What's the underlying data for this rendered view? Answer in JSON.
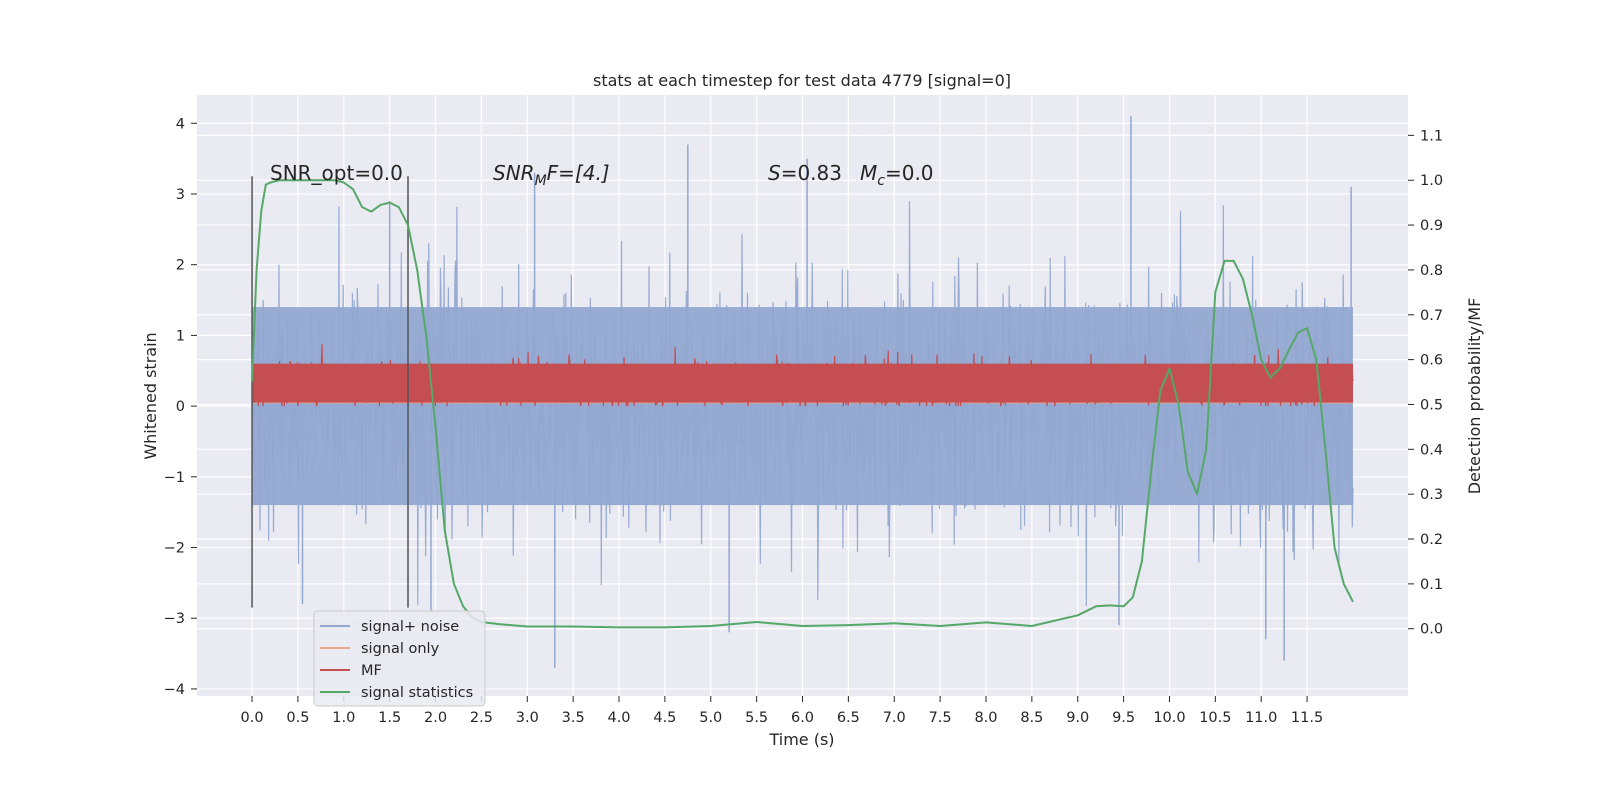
{
  "chart_data": {
    "type": "line",
    "title": "stats at each timestep for test data 4779 [signal=0]",
    "xlabel": "Time (s)",
    "ylabel": "Whitened strain",
    "y2label": "Detection probability/MF",
    "xlim": [
      -0.6,
      12.6
    ],
    "ylim": [
      -4.1,
      4.4
    ],
    "y2lim": [
      -0.15,
      1.19
    ],
    "x_ticks": [
      0.0,
      0.5,
      1.0,
      1.5,
      2.0,
      2.5,
      3.0,
      3.5,
      4.0,
      4.5,
      5.0,
      5.5,
      6.0,
      6.5,
      7.0,
      7.5,
      8.0,
      8.5,
      9.0,
      9.5,
      10.0,
      10.5,
      11.0,
      11.5
    ],
    "x_tick_labels": [
      "0.0",
      "0.5",
      "1.0",
      "1.5",
      "2.0",
      "2.5",
      "3.0",
      "3.5",
      "4.0",
      "4.5",
      "5.0",
      "5.5",
      "6.0",
      "6.5",
      "7.0",
      "7.5",
      "8.0",
      "8.5",
      "9.0",
      "9.5",
      "10.0",
      "10.5",
      "11.0",
      "11.5"
    ],
    "y_ticks": [
      4,
      3,
      2,
      1,
      0,
      -1,
      -2,
      -3,
      -4
    ],
    "y_tick_labels": [
      "4",
      "3",
      "2",
      "1",
      "0",
      "−1",
      "−2",
      "−3",
      "−4"
    ],
    "y2_ticks": [
      1.1,
      1.0,
      0.9,
      0.8,
      0.7,
      0.6,
      0.5,
      0.4,
      0.3,
      0.2,
      0.1,
      0.0
    ],
    "y2_tick_labels": [
      "1.1",
      "1.0",
      "0.9",
      "0.8",
      "0.7",
      "0.6",
      "0.5",
      "0.4",
      "0.3",
      "0.2",
      "0.1",
      "0.0"
    ],
    "grid": true,
    "legend_position": "lower-left",
    "vertical_markers": [
      0.0,
      1.7
    ],
    "annotations": {
      "snr_opt": "SNR_opt=0.0",
      "snr_mf_base": "SNR",
      "snr_mf_sub": "M",
      "snr_mf_rest": "F=[4.]",
      "s_label": "S",
      "s_value": "=0.83",
      "mc_base": "M",
      "mc_sub": "c",
      "mc_value": "=0.0"
    },
    "series": [
      {
        "name": "signal+ noise",
        "color": "#92a8d1",
        "axis": "left",
        "t_range": [
          0.0,
          12.0
        ],
        "envelope_typical": [
          -1.4,
          1.4
        ],
        "peaks": [
          {
            "x": 0.55,
            "y": -2.8
          },
          {
            "x": 1.5,
            "y": 2.9
          },
          {
            "x": 1.95,
            "y": -2.9
          },
          {
            "x": 3.08,
            "y": 3.3
          },
          {
            "x": 3.3,
            "y": -3.7
          },
          {
            "x": 4.75,
            "y": 3.7
          },
          {
            "x": 5.2,
            "y": -3.2
          },
          {
            "x": 6.05,
            "y": 3.5
          },
          {
            "x": 9.45,
            "y": -3.1
          },
          {
            "x": 9.58,
            "y": 4.1
          },
          {
            "x": 11.05,
            "y": -3.3
          },
          {
            "x": 11.25,
            "y": -3.6
          },
          {
            "x": 11.98,
            "y": 3.1
          }
        ]
      },
      {
        "name": "signal only",
        "color": "#e9a68c",
        "axis": "left",
        "x": [
          0.0,
          12.0
        ],
        "y": [
          0.05,
          0.05
        ]
      },
      {
        "name": "MF",
        "color": "#c44e52",
        "axis": "left",
        "t_range": [
          0.0,
          12.0
        ],
        "band": [
          0.05,
          0.6
        ],
        "max": 1.0
      },
      {
        "name": "signal statistics",
        "color": "#55a868",
        "axis": "right",
        "x": [
          0.0,
          0.05,
          0.1,
          0.15,
          0.2,
          0.3,
          0.5,
          0.7,
          0.9,
          1.0,
          1.1,
          1.2,
          1.3,
          1.4,
          1.5,
          1.6,
          1.7,
          1.8,
          1.9,
          2.0,
          2.1,
          2.2,
          2.3,
          2.4,
          2.5,
          2.7,
          3.0,
          3.5,
          4.0,
          4.5,
          5.0,
          5.5,
          6.0,
          6.5,
          7.0,
          7.5,
          8.0,
          8.5,
          9.0,
          9.2,
          9.35,
          9.5,
          9.6,
          9.7,
          9.8,
          9.9,
          10.0,
          10.1,
          10.2,
          10.3,
          10.4,
          10.5,
          10.6,
          10.7,
          10.8,
          10.9,
          11.0,
          11.1,
          11.2,
          11.3,
          11.4,
          11.5,
          11.6,
          11.7,
          11.8,
          11.9,
          12.0
        ],
        "y": [
          0.55,
          0.8,
          0.93,
          0.99,
          0.995,
          1.0,
          1.0,
          1.0,
          1.0,
          0.995,
          0.98,
          0.94,
          0.93,
          0.945,
          0.95,
          0.94,
          0.9,
          0.8,
          0.65,
          0.45,
          0.22,
          0.1,
          0.05,
          0.025,
          0.015,
          0.01,
          0.005,
          0.005,
          0.003,
          0.003,
          0.006,
          0.015,
          0.006,
          0.008,
          0.012,
          0.006,
          0.014,
          0.006,
          0.03,
          0.05,
          0.052,
          0.05,
          0.07,
          0.15,
          0.35,
          0.53,
          0.58,
          0.5,
          0.35,
          0.3,
          0.4,
          0.75,
          0.82,
          0.82,
          0.78,
          0.7,
          0.6,
          0.56,
          0.58,
          0.62,
          0.66,
          0.67,
          0.6,
          0.4,
          0.18,
          0.1,
          0.06
        ]
      }
    ]
  }
}
